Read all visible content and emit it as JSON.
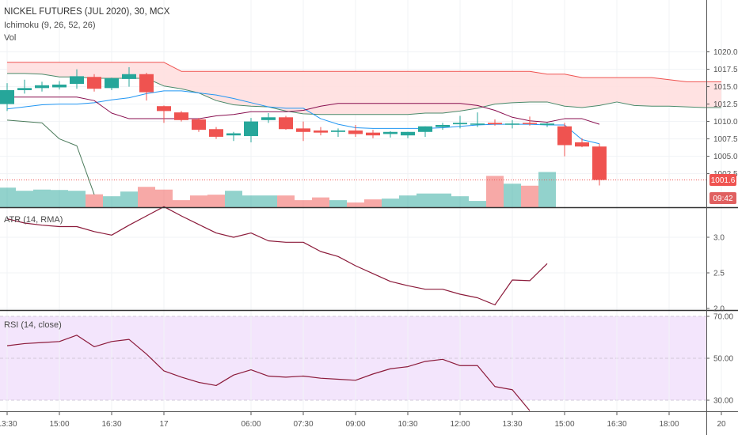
{
  "header": {
    "title": "NICKEL FUTURES (JUL 2020), 30, MCX",
    "indicator_ichimoku": "Ichimoku (9, 26, 52, 26)",
    "indicator_vol": "Vol",
    "indicator_atr": "ATR (14, RMA)",
    "indicator_rsi": "RSI (14, close)"
  },
  "tags": {
    "last_price": "1001.6",
    "countdown": "09:42"
  },
  "colors": {
    "up": "#26a69a",
    "down": "#ef5350",
    "tenkan": "#2196f3",
    "kijun": "#880e4f",
    "chikou": "#4a7a5a",
    "span_a": "#4a8a6a",
    "span_b": "#ef5350",
    "cloud": "#ffdddd",
    "line": "#8b1a3a",
    "rsi_band": "#f3e5fc",
    "price_tag": "#ef5350",
    "countdown_tag": "#e06060"
  },
  "chart_data": [
    {
      "type": "candlestick",
      "name": "price",
      "y_ticks": [
        1002.5,
        1005.0,
        1007.5,
        1010.0,
        1012.5,
        1015.0,
        1017.5,
        1020.0
      ],
      "ylim": [
        1000.5,
        1021.7
      ],
      "x_ticks": [
        {
          "label": "13:30",
          "i": 0
        },
        {
          "label": "15:00",
          "i": 3
        },
        {
          "label": "16:30",
          "i": 6
        },
        {
          "label": "17",
          "i": 9
        },
        {
          "label": "06:00",
          "i": 14
        },
        {
          "label": "07:30",
          "i": 17
        },
        {
          "label": "09:00",
          "i": 20
        },
        {
          "label": "10:30",
          "i": 23
        },
        {
          "label": "12:00",
          "i": 26
        },
        {
          "label": "13:30",
          "i": 29
        },
        {
          "label": "15:00",
          "i": 32
        },
        {
          "label": "16:30",
          "i": 35
        },
        {
          "label": "18:00",
          "i": 38
        },
        {
          "label": "20",
          "i": 41
        }
      ],
      "candles": [
        {
          "o": 1012.5,
          "h": 1015.5,
          "l": 1011.5,
          "c": 1014.5
        },
        {
          "o": 1014.5,
          "h": 1016.0,
          "l": 1014.0,
          "c": 1014.8
        },
        {
          "o": 1014.8,
          "h": 1015.7,
          "l": 1014.3,
          "c": 1015.2
        },
        {
          "o": 1014.9,
          "h": 1015.8,
          "l": 1014.6,
          "c": 1015.3
        },
        {
          "o": 1015.4,
          "h": 1017.5,
          "l": 1014.7,
          "c": 1016.5
        },
        {
          "o": 1016.4,
          "h": 1016.8,
          "l": 1014.3,
          "c": 1014.7
        },
        {
          "o": 1014.8,
          "h": 1016.3,
          "l": 1014.5,
          "c": 1016.2
        },
        {
          "o": 1016.1,
          "h": 1017.8,
          "l": 1015.0,
          "c": 1016.8
        },
        {
          "o": 1016.8,
          "h": 1017.0,
          "l": 1013.0,
          "c": 1014.2
        },
        {
          "o": 1012.2,
          "h": 1012.3,
          "l": 1009.8,
          "c": 1011.5
        },
        {
          "o": 1011.3,
          "h": 1011.5,
          "l": 1010.0,
          "c": 1010.2
        },
        {
          "o": 1010.3,
          "h": 1010.5,
          "l": 1008.5,
          "c": 1008.8
        },
        {
          "o": 1008.9,
          "h": 1009.2,
          "l": 1007.5,
          "c": 1007.8
        },
        {
          "o": 1008.0,
          "h": 1008.5,
          "l": 1007.2,
          "c": 1008.3
        },
        {
          "o": 1007.9,
          "h": 1010.5,
          "l": 1007.0,
          "c": 1010.0
        },
        {
          "o": 1010.2,
          "h": 1011.2,
          "l": 1009.8,
          "c": 1010.6
        },
        {
          "o": 1010.6,
          "h": 1010.8,
          "l": 1008.8,
          "c": 1008.9
        },
        {
          "o": 1009.0,
          "h": 1010.0,
          "l": 1007.2,
          "c": 1008.5
        },
        {
          "o": 1008.7,
          "h": 1009.2,
          "l": 1008.0,
          "c": 1008.4
        },
        {
          "o": 1008.5,
          "h": 1009.0,
          "l": 1007.8,
          "c": 1008.7
        },
        {
          "o": 1008.7,
          "h": 1009.5,
          "l": 1007.8,
          "c": 1008.2
        },
        {
          "o": 1008.4,
          "h": 1008.8,
          "l": 1007.6,
          "c": 1008.0
        },
        {
          "o": 1008.2,
          "h": 1008.6,
          "l": 1007.7,
          "c": 1008.5
        },
        {
          "o": 1008.0,
          "h": 1008.5,
          "l": 1007.6,
          "c": 1008.5
        },
        {
          "o": 1008.5,
          "h": 1009.3,
          "l": 1007.8,
          "c": 1009.3
        },
        {
          "o": 1009.2,
          "h": 1009.8,
          "l": 1008.8,
          "c": 1009.5
        },
        {
          "o": 1009.6,
          "h": 1010.8,
          "l": 1009.0,
          "c": 1009.8
        },
        {
          "o": 1009.6,
          "h": 1011.3,
          "l": 1009.2,
          "c": 1009.7
        },
        {
          "o": 1009.8,
          "h": 1010.3,
          "l": 1009.4,
          "c": 1009.6
        },
        {
          "o": 1009.6,
          "h": 1010.2,
          "l": 1009.0,
          "c": 1009.7
        },
        {
          "o": 1009.8,
          "h": 1010.7,
          "l": 1009.4,
          "c": 1009.7
        },
        {
          "o": 1009.5,
          "h": 1009.8,
          "l": 1009.2,
          "c": 1009.7
        },
        {
          "o": 1009.3,
          "h": 1009.8,
          "l": 1005.0,
          "c": 1006.6
        },
        {
          "o": 1007.0,
          "h": 1007.6,
          "l": 1006.3,
          "c": 1006.4
        },
        {
          "o": 1006.4,
          "h": 1006.8,
          "l": 1000.8,
          "c": 1001.6
        }
      ],
      "volume": {
        "max": 100,
        "values": [
          50,
          42,
          45,
          44,
          42,
          33,
          28,
          40,
          52,
          45,
          18,
          30,
          32,
          42,
          30,
          30,
          30,
          18,
          25,
          18,
          12,
          20,
          22,
          30,
          35,
          35,
          28,
          16,
          80,
          60,
          55,
          90
        ]
      },
      "tenkan": {
        "start": 0,
        "values": [
          1011.8,
          1012.1,
          1012.4,
          1012.5,
          1012.5,
          1012.7,
          1013.1,
          1013.4,
          1014.0,
          1014.4,
          1014.4,
          1014.1,
          1013.8,
          1013.3,
          1012.7,
          1012.1,
          1011.9,
          1011.9,
          1010.4,
          1009.6,
          1009.1,
          1009.0,
          1009.0,
          1009.0,
          1009.0,
          1009.1,
          1009.3,
          1009.5,
          1009.6,
          1009.6,
          1009.6,
          1009.5,
          1009.5,
          1007.4,
          1006.8
        ]
      },
      "kijun": {
        "start": 0,
        "values": [
          1013.5,
          1013.5,
          1013.5,
          1013.5,
          1013.5,
          1013.0,
          1011.2,
          1010.4,
          1010.4,
          1010.4,
          1010.4,
          1010.4,
          1010.8,
          1011.0,
          1011.4,
          1011.4,
          1011.4,
          1011.6,
          1012.2,
          1012.6,
          1012.6,
          1012.6,
          1012.6,
          1012.6,
          1012.6,
          1012.6,
          1012.6,
          1012.3,
          1011.6,
          1010.6,
          1010.1,
          1009.9,
          1010.4,
          1010.4,
          1009.6
        ]
      },
      "chikou": {
        "start": 0,
        "values": [
          1010.2,
          1010.0,
          1009.8,
          1007.5,
          1006.5,
          999.5
        ]
      },
      "span_a": {
        "start": 0,
        "values": [
          1016.9,
          1016.9,
          1016.8,
          1016.4,
          1016.4,
          1016.2,
          1016.2,
          1016.2,
          1016.2,
          1015.1,
          1014.7,
          1014.1,
          1013.0,
          1012.4,
          1012.2,
          1012.1,
          1011.5,
          1011.1,
          1011.0,
          1011.0,
          1011.0,
          1011.0,
          1011.0,
          1011.0,
          1011.2,
          1011.2,
          1011.5,
          1011.9,
          1012.5,
          1012.7,
          1012.8,
          1012.8,
          1012.2,
          1012.0,
          1012.3,
          1012.8,
          1012.3,
          1012.2,
          1012.2,
          1012.1,
          1012.0,
          1012.0
        ]
      },
      "span_b": {
        "start": 0,
        "values": [
          1018.5,
          1018.5,
          1018.5,
          1018.5,
          1018.5,
          1018.5,
          1018.5,
          1018.5,
          1018.5,
          1018.5,
          1017.2,
          1017.2,
          1017.2,
          1017.2,
          1017.2,
          1017.2,
          1017.2,
          1017.2,
          1017.2,
          1017.2,
          1017.2,
          1017.2,
          1017.2,
          1017.2,
          1017.2,
          1017.2,
          1017.2,
          1017.2,
          1017.2,
          1017.2,
          1017.2,
          1016.8,
          1016.8,
          1016.3,
          1016.3,
          1016.3,
          1016.3,
          1016.3,
          1016.0,
          1015.7,
          1015.7,
          1015.7
        ]
      },
      "last_price": 1001.6
    },
    {
      "type": "line",
      "name": "atr",
      "y_ticks": [
        2.0,
        2.5,
        3.0
      ],
      "ylim": [
        1.98,
        3.55
      ],
      "values": [
        3.26,
        3.2,
        3.17,
        3.15,
        3.15,
        3.08,
        3.03,
        3.17,
        3.3,
        3.43,
        3.3,
        3.18,
        3.06,
        3.0,
        3.06,
        2.95,
        2.93,
        2.93,
        2.8,
        2.73,
        2.6,
        2.49,
        2.38,
        2.32,
        2.27,
        2.27,
        2.2,
        2.15,
        2.05,
        2.4,
        2.39,
        2.63
      ]
    },
    {
      "type": "line",
      "name": "rsi",
      "y_ticks": [
        30.0,
        50.0,
        70.0
      ],
      "ylim": [
        24.0,
        71.2
      ],
      "band": [
        30,
        70
      ],
      "values": [
        56.0,
        57.0,
        57.5,
        58.0,
        61.0,
        55.5,
        58.0,
        59.0,
        52.0,
        44.0,
        41.0,
        38.5,
        37.0,
        42.0,
        44.5,
        41.5,
        41.0,
        41.5,
        40.5,
        40.0,
        39.5,
        42.5,
        45.0,
        46.0,
        48.5,
        49.5,
        46.5,
        46.5,
        36.5,
        35.0,
        25.0
      ]
    }
  ]
}
